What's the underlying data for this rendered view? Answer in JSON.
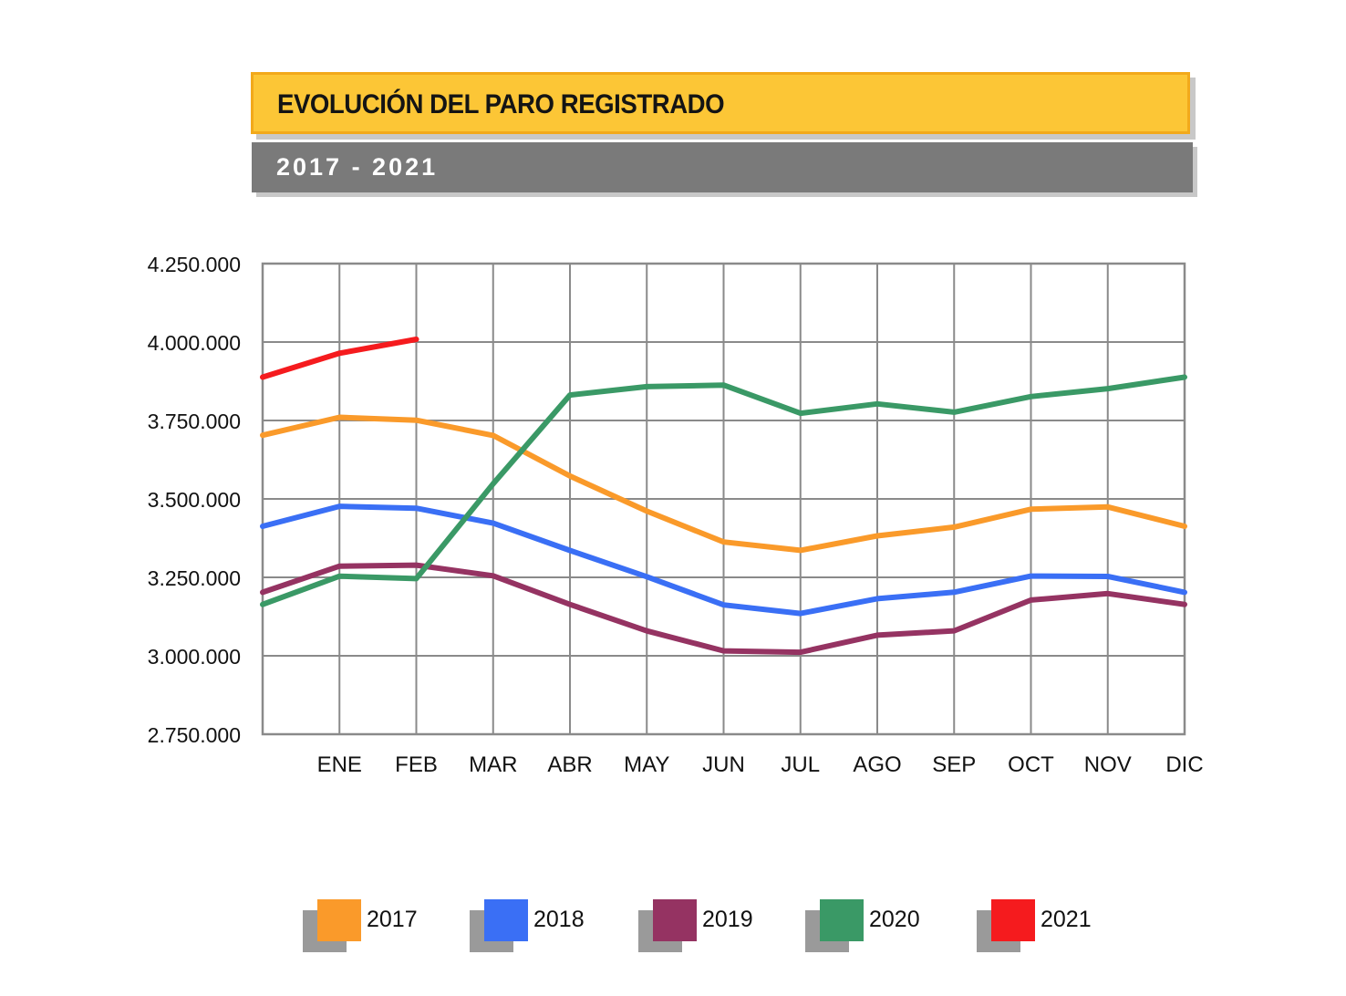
{
  "header": {
    "title": "EVOLUCIÓN DEL PARO REGISTRADO",
    "subtitle": "2017 - 2021"
  },
  "chart_data": {
    "type": "line",
    "title": "EVOLUCIÓN DEL PARO REGISTRADO",
    "subtitle": "2017 - 2021",
    "categories": [
      "",
      "ENE",
      "FEB",
      "MAR",
      "ABR",
      "MAY",
      "JUN",
      "JUL",
      "AGO",
      "SEP",
      "OCT",
      "NOV",
      "DIC"
    ],
    "ylim": [
      2750000,
      4250000
    ],
    "yticks": [
      2750000,
      3000000,
      3250000,
      3500000,
      3750000,
      4000000,
      4250000
    ],
    "ytick_labels": [
      "2.750.000",
      "3.000.000",
      "3.250.000",
      "3.500.000",
      "3.750.000",
      "4.000.000",
      "4.250.000"
    ],
    "grid": true,
    "legend_position": "bottom",
    "series": [
      {
        "name": "2017",
        "color": "#fa9a2a",
        "values": [
          3702974,
          3760231,
          3750876,
          3702317,
          3573036,
          3461128,
          3362811,
          3335924,
          3382324,
          3410182,
          3467026,
          3474281,
          3412781
        ]
      },
      {
        "name": "2018",
        "color": "#3a6ff5",
        "values": [
          3412781,
          3476528,
          3470248,
          3422551,
          3335868,
          3252130,
          3162162,
          3135021,
          3182068,
          3202509,
          3254139,
          3252867,
          3202297
        ]
      },
      {
        "name": "2019",
        "color": "#953362",
        "values": [
          3202297,
          3285761,
          3289040,
          3255084,
          3163566,
          3079491,
          3015686,
          3011433,
          3065804,
          3079711,
          3177659,
          3198184,
          3163605
        ]
      },
      {
        "name": "2020",
        "color": "#3a9966",
        "values": [
          3163605,
          3253853,
          3246047,
          3548312,
          3831203,
          3857776,
          3862883,
          3773034,
          3802814,
          3776485,
          3826043,
          3851312,
          3888137
        ]
      },
      {
        "name": "2021",
        "color": "#f51b1e",
        "values": [
          3888137,
          3964353,
          4008789,
          null,
          null,
          null,
          null,
          null,
          null,
          null,
          null,
          null,
          null
        ]
      }
    ]
  },
  "legend": {
    "items": [
      {
        "label": "2017",
        "color": "#fa9a2a"
      },
      {
        "label": "2018",
        "color": "#3a6ff5"
      },
      {
        "label": "2019",
        "color": "#953362"
      },
      {
        "label": "2020",
        "color": "#3a9966"
      },
      {
        "label": "2021",
        "color": "#f51b1e"
      }
    ]
  }
}
